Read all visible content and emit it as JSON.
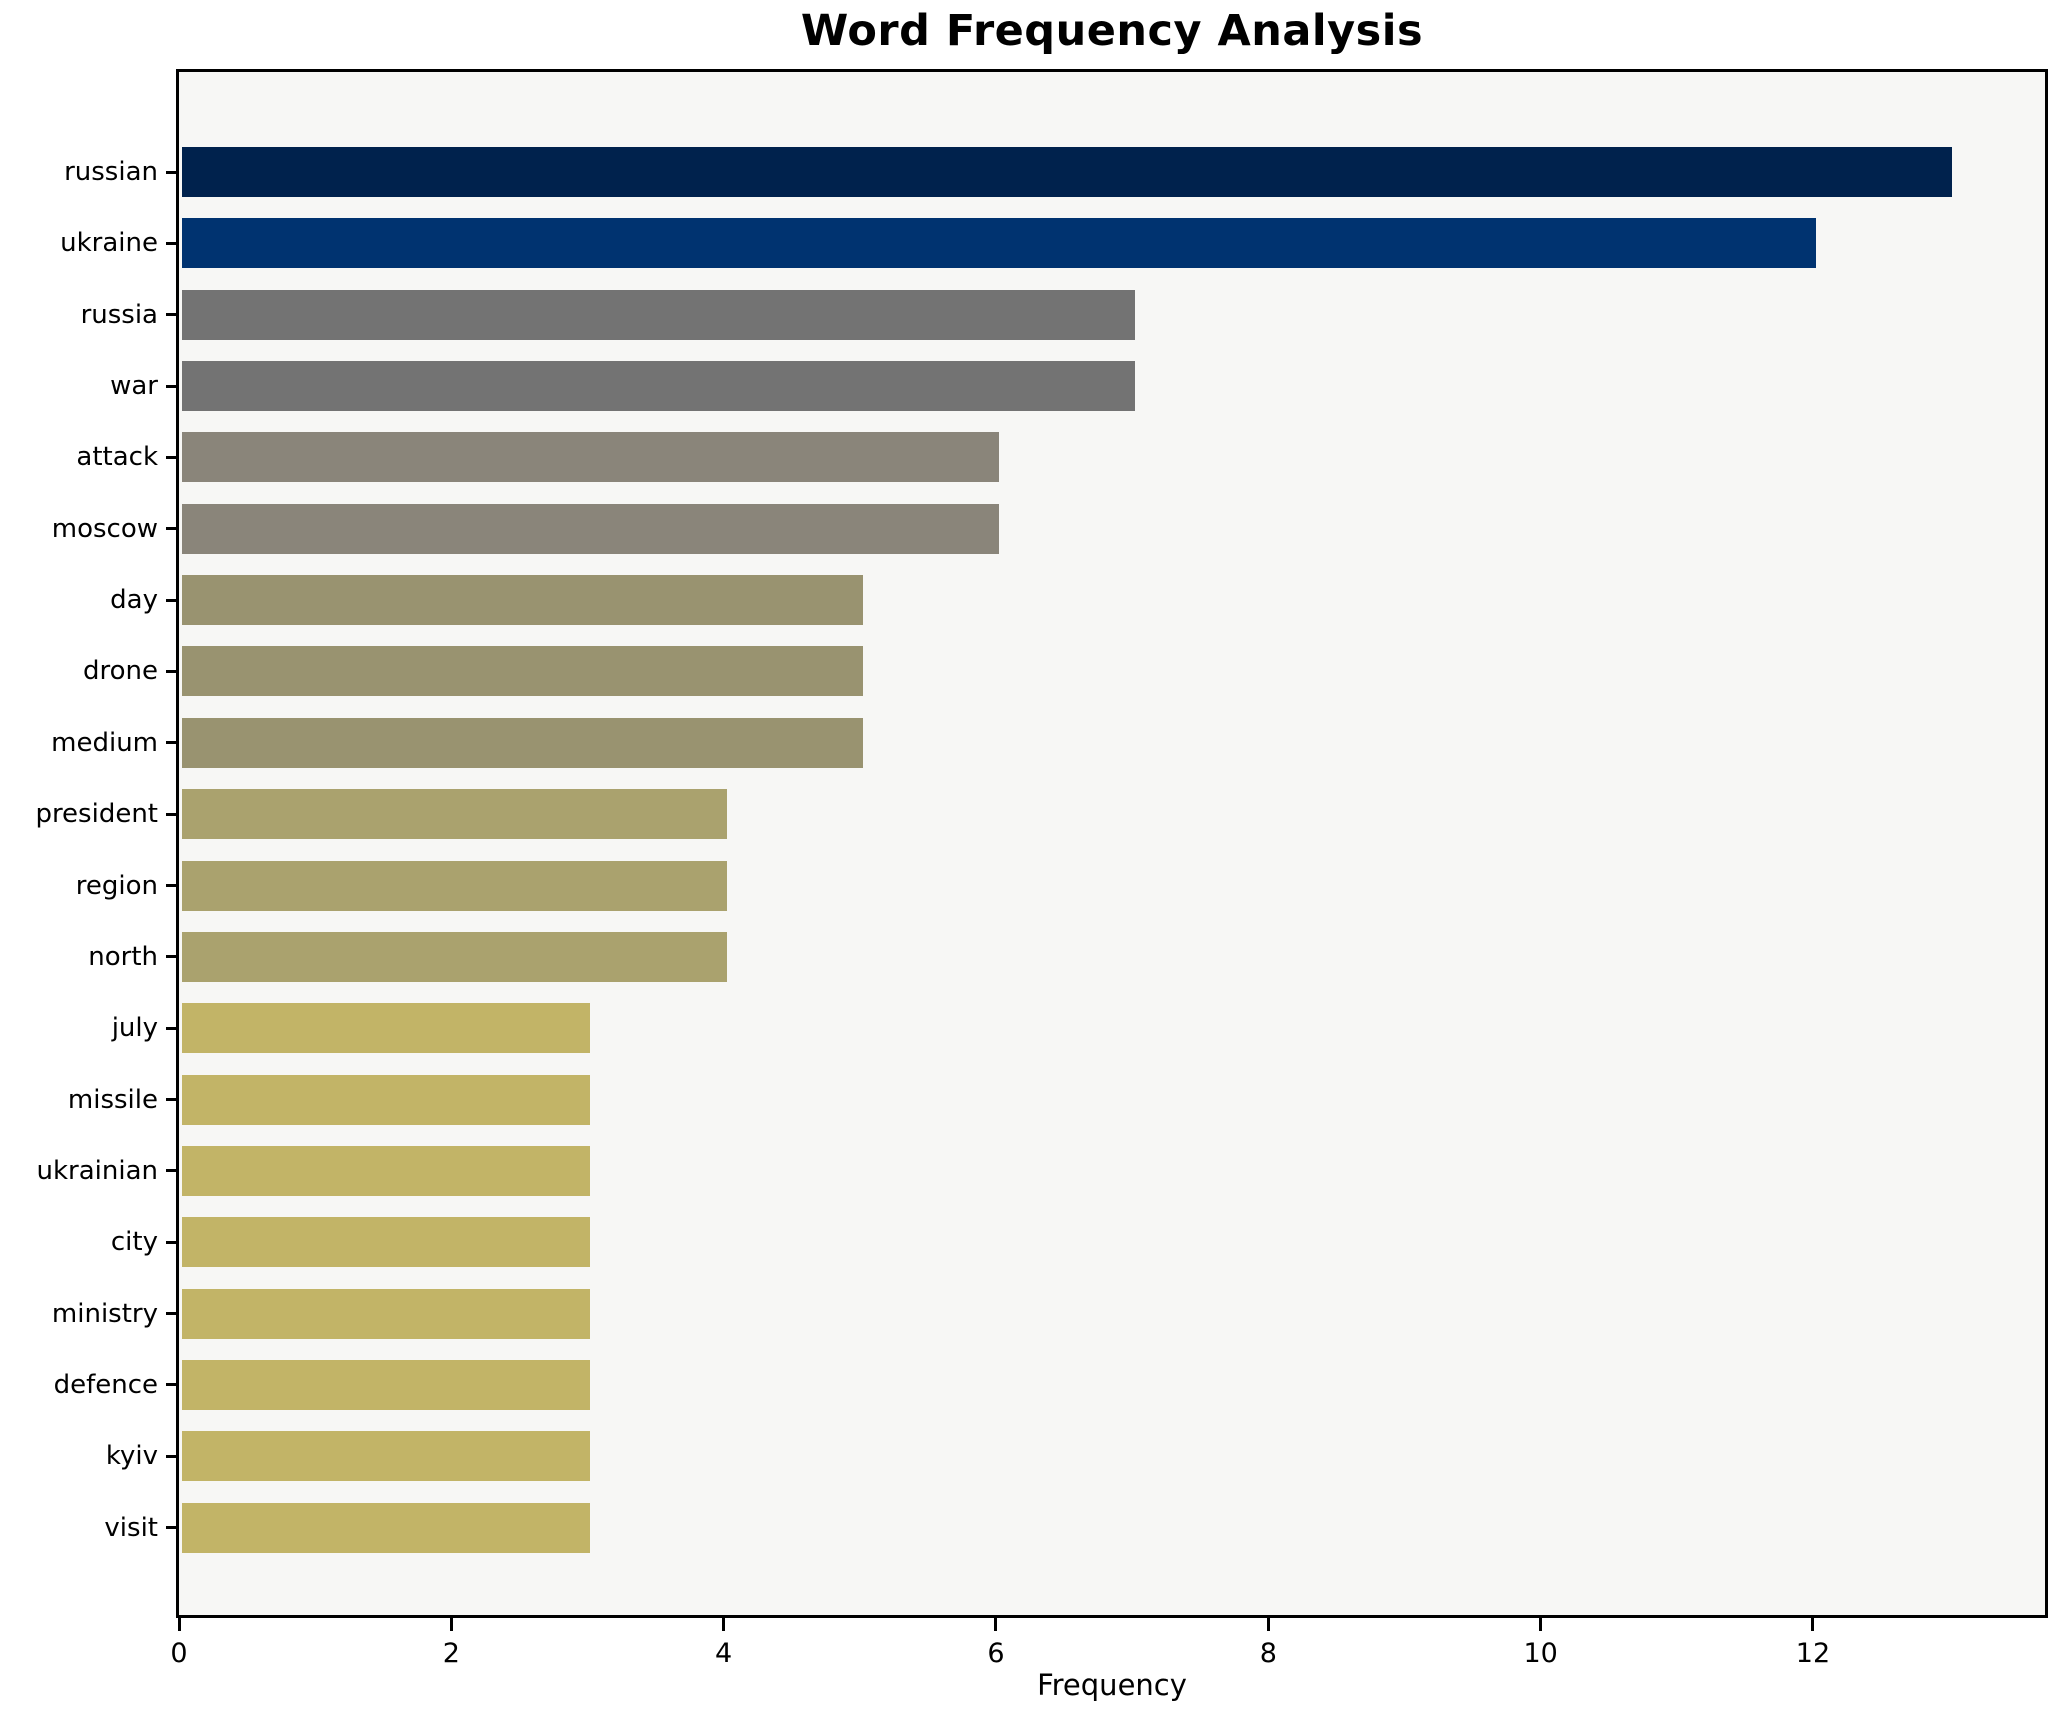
{
  "chart_data": {
    "type": "bar",
    "orientation": "horizontal",
    "title": "Word Frequency Analysis",
    "xlabel": "Frequency",
    "ylabel": "",
    "categories": [
      "russian",
      "ukraine",
      "russia",
      "war",
      "attack",
      "moscow",
      "day",
      "drone",
      "medium",
      "president",
      "region",
      "north",
      "july",
      "missile",
      "ukrainian",
      "city",
      "ministry",
      "defence",
      "kyiv",
      "visit"
    ],
    "values": [
      13,
      12,
      7,
      7,
      6,
      6,
      5,
      5,
      5,
      4,
      4,
      4,
      3,
      3,
      3,
      3,
      3,
      3,
      3,
      3
    ],
    "bar_colors": [
      "#00224d",
      "#003370",
      "#737373",
      "#737373",
      "#8a857a",
      "#8a857a",
      "#999370",
      "#999370",
      "#999370",
      "#aaa26e",
      "#aaa26e",
      "#aaa26e",
      "#c2b467",
      "#c2b467",
      "#c2b467",
      "#c2b467",
      "#c2b467",
      "#c2b467",
      "#c2b467",
      "#c2b467"
    ],
    "x_ticks": [
      0,
      2,
      4,
      6,
      8,
      10,
      12
    ],
    "xlim": [
      0,
      13.66
    ],
    "grid": false,
    "legend": "none",
    "plot_background": "#f7f7f5",
    "figure_background": "#ffffff",
    "spine_color": "#000000",
    "bar_label_color": "#000000"
  }
}
